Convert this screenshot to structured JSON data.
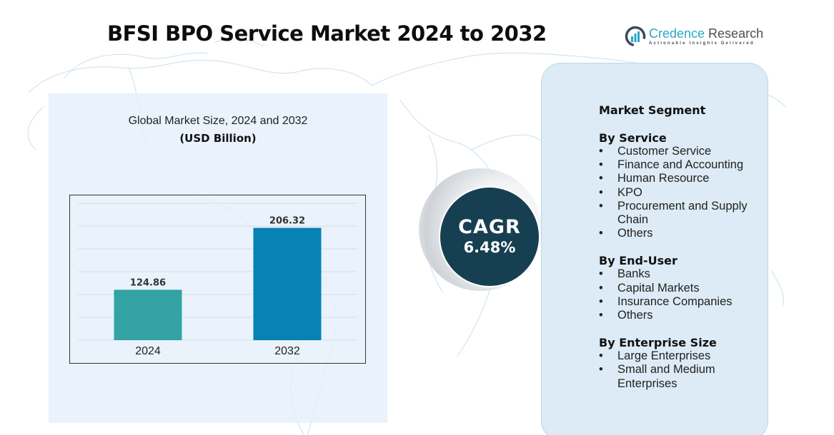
{
  "header": {
    "title": "BFSI BPO Service Market 2024 to 2032"
  },
  "logo": {
    "icon": "bar-chart-icon",
    "name_part1": "Credence",
    "name_part2": " Research",
    "tagline": "Actionable Insights Delivered"
  },
  "chart_panel": {
    "heading": "Global Market Size, 2024 and 2032",
    "subheading": "(USD Billion)"
  },
  "chart_data": {
    "type": "bar",
    "title": "Global Market Size, 2024 and 2032",
    "ylabel": "USD Billion",
    "xlabel": "",
    "categories": [
      "2024",
      "2032"
    ],
    "values": [
      124.86,
      206.32
    ],
    "value_labels": [
      "124.86",
      "206.32"
    ],
    "colors": [
      "#33a3a5",
      "#0882b3"
    ],
    "ylim": [
      58.5,
      250
    ],
    "grid": true,
    "legend": "none"
  },
  "cagr": {
    "label": "CAGR",
    "value": "6.48%"
  },
  "segments": {
    "title": "Market Segment",
    "groups": [
      {
        "title": "By Service",
        "items": [
          "Customer Service",
          "Finance and Accounting",
          "Human Resource",
          "KPO",
          "Procurement and Supply Chain",
          "Others"
        ]
      },
      {
        "title": "By End-User",
        "items": [
          "Banks",
          "Capital Markets",
          "Insurance Companies",
          "Others"
        ]
      },
      {
        "title": "By Enterprise Size",
        "items": [
          "Large Enterprises",
          "Small and Medium Enterprises"
        ]
      }
    ],
    "bullet": "•"
  },
  "colors": {
    "title": "#0d0d0d",
    "cagr_circle": "#173f52",
    "panel_bg": "#dcebf5",
    "chart_bg": "#e8f2fa",
    "brand_accent": "#2aa7c9"
  }
}
